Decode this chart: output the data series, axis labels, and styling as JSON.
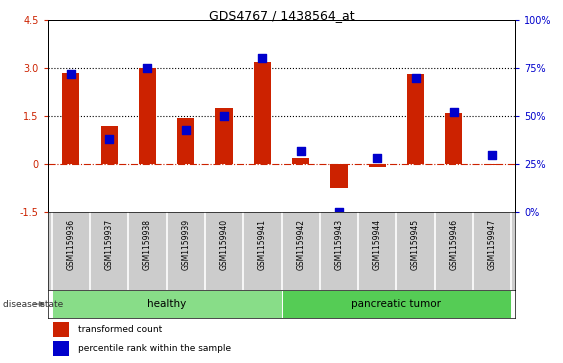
{
  "title": "GDS4767 / 1438564_at",
  "categories": [
    "GSM1159936",
    "GSM1159937",
    "GSM1159938",
    "GSM1159939",
    "GSM1159940",
    "GSM1159941",
    "GSM1159942",
    "GSM1159943",
    "GSM1159944",
    "GSM1159945",
    "GSM1159946",
    "GSM1159947"
  ],
  "transformed_count": [
    2.85,
    1.2,
    3.0,
    1.45,
    1.75,
    3.2,
    0.2,
    -0.75,
    -0.1,
    2.8,
    1.6,
    -0.02
  ],
  "percentile_rank": [
    72,
    38,
    75,
    43,
    50,
    80,
    32,
    0,
    28,
    70,
    52,
    30
  ],
  "ylim_left": [
    -1.5,
    4.5
  ],
  "ylim_right": [
    0,
    100
  ],
  "yticks_left": [
    -1.5,
    0,
    1.5,
    3.0,
    4.5
  ],
  "yticks_right": [
    0,
    25,
    50,
    75,
    100
  ],
  "hlines": [
    1.5,
    3.0
  ],
  "hline_zero": 0,
  "bar_color": "#cc2200",
  "dot_color": "#0000cc",
  "zero_line_color": "#cc2200",
  "groups": [
    {
      "label": "healthy",
      "start": 0,
      "end": 5,
      "color": "#88dd88"
    },
    {
      "label": "pancreatic tumor",
      "start": 6,
      "end": 11,
      "color": "#55cc55"
    }
  ],
  "disease_state_label": "disease state",
  "legend_items": [
    {
      "color": "#cc2200",
      "label": "transformed count"
    },
    {
      "color": "#0000cc",
      "label": "percentile rank within the sample"
    }
  ],
  "bar_width": 0.45,
  "dot_size": 40,
  "cell_color": "#cccccc",
  "cell_border_color": "#ffffff"
}
